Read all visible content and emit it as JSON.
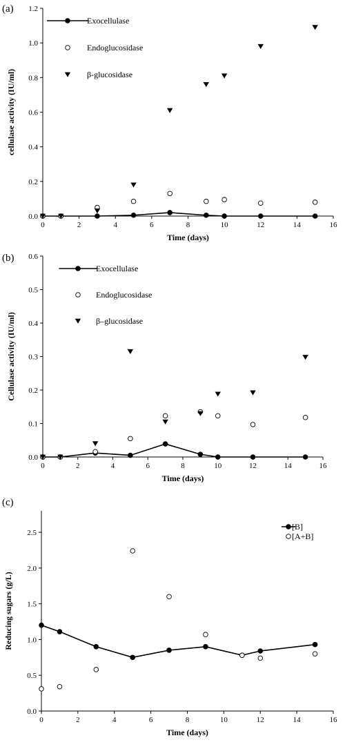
{
  "chart_data": [
    {
      "type": "scatter",
      "panel_label": "(a)",
      "xlabel": "Time (days)",
      "ylabel": "cellulase activity  (IU/ml)",
      "xlim": [
        0,
        16
      ],
      "ylim": [
        0,
        1.2
      ],
      "xticks": [
        0,
        2,
        4,
        6,
        8,
        10,
        12,
        14,
        16
      ],
      "yticks": [
        "0.0",
        "0.2",
        "0.4",
        "0.6",
        "0.8",
        "1.0",
        "1.2"
      ],
      "legend_position": "top-left",
      "series": [
        {
          "name": "Exocellulase",
          "marker": "filled-circle",
          "line": true,
          "x": [
            0,
            1,
            3,
            5,
            7,
            9,
            10,
            12,
            15
          ],
          "y": [
            0.0,
            0.0,
            0.0,
            0.005,
            0.02,
            0.005,
            0.0,
            0.0,
            0.0
          ]
        },
        {
          "name": "Endoglucosidase",
          "marker": "open-circle",
          "line": false,
          "x": [
            0,
            1,
            3,
            5,
            7,
            9,
            10,
            12,
            15
          ],
          "y": [
            0.0,
            0.0,
            0.05,
            0.085,
            0.13,
            0.085,
            0.095,
            0.075,
            0.08
          ]
        },
        {
          "name": "β-glucosidase",
          "marker": "filled-triangle-down",
          "line": false,
          "x": [
            0,
            1,
            3,
            5,
            7,
            9,
            10,
            12,
            15
          ],
          "y": [
            0.0,
            0.0,
            0.03,
            0.18,
            0.61,
            0.76,
            0.81,
            0.98,
            1.09
          ]
        }
      ]
    },
    {
      "type": "scatter",
      "panel_label": "(b)",
      "xlabel": "Time (days)",
      "ylabel": "Cellulase activity  (IU/ml)",
      "xlim": [
        0,
        16
      ],
      "ylim": [
        0,
        0.6
      ],
      "xticks": [
        0,
        2,
        4,
        6,
        8,
        10,
        12,
        14,
        16
      ],
      "yticks": [
        "0.0",
        "0.1",
        "0.2",
        "0.3",
        "0.4",
        "0.5",
        "0.6"
      ],
      "legend_position": "top-left",
      "series": [
        {
          "name": "Exocellulase",
          "marker": "filled-circle",
          "line": true,
          "x": [
            0,
            1,
            3,
            5,
            7,
            9,
            10,
            12,
            15
          ],
          "y": [
            0.0,
            0.0,
            0.012,
            0.005,
            0.039,
            0.008,
            0.0,
            0.0,
            0.0
          ]
        },
        {
          "name": "Endoglucosidase",
          "marker": "open-circle",
          "line": false,
          "x": [
            0,
            1,
            3,
            5,
            7,
            9,
            10,
            12,
            15
          ],
          "y": [
            0.0,
            0.0,
            0.016,
            0.055,
            0.123,
            0.135,
            0.123,
            0.097,
            0.118
          ]
        },
        {
          "name": "β–glucosidase",
          "marker": "filled-triangle-down",
          "line": false,
          "x": [
            0,
            1,
            3,
            5,
            7,
            9,
            10,
            12,
            15
          ],
          "y": [
            0.0,
            0.0,
            0.04,
            0.315,
            0.105,
            0.13,
            0.188,
            0.192,
            0.298
          ]
        }
      ]
    },
    {
      "type": "line",
      "panel_label": "(c)",
      "xlabel": "Time (days)",
      "ylabel": "Reducing sugars (g/L)",
      "xlim": [
        0,
        16
      ],
      "ylim": [
        0,
        2.5
      ],
      "yaxis_max": 2.8,
      "xticks": [
        0,
        2,
        4,
        6,
        8,
        10,
        12,
        14,
        16
      ],
      "yticks": [
        "0.0",
        "0.5",
        "1.0",
        "1.5",
        "2.0",
        "2.5"
      ],
      "legend_position": "top-right",
      "series": [
        {
          "name": "[B]",
          "marker": "filled-circle",
          "line": true,
          "x": [
            0,
            1,
            3,
            5,
            7,
            9,
            11,
            12,
            15
          ],
          "y": [
            1.2,
            1.11,
            0.9,
            0.75,
            0.85,
            0.9,
            0.78,
            0.84,
            0.93
          ]
        },
        {
          "name": "[A+B]",
          "marker": "open-circle",
          "line": false,
          "x": [
            0,
            1,
            3,
            5,
            7,
            9,
            11,
            12,
            15
          ],
          "y": [
            0.31,
            0.34,
            0.58,
            2.24,
            1.6,
            1.07,
            0.78,
            0.74,
            0.8
          ]
        }
      ]
    }
  ]
}
